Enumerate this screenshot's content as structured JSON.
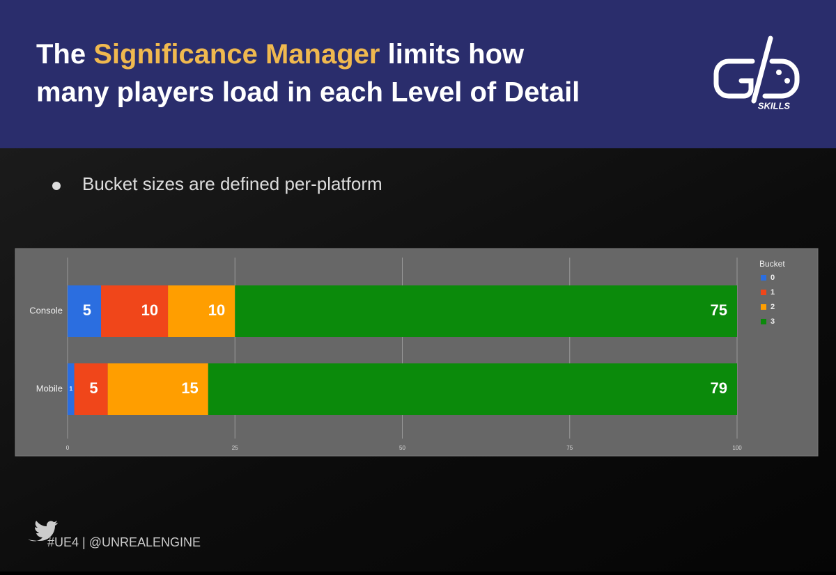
{
  "header": {
    "title_start": "The ",
    "title_highlight": "Significance Manager",
    "title_line1_end": " limits how",
    "title_line2": "many players load in each Level of Detail",
    "logo_text": "SKILLS"
  },
  "bullet": "Bucket sizes are defined per-platform",
  "footer": "#UE4 | @UNREALENGINE",
  "chart_data": {
    "type": "stacked-bar-horizontal",
    "legend_title": "Bucket",
    "legend_position": "right",
    "categories": [
      "Console",
      "Mobile"
    ],
    "series": [
      {
        "name": "0",
        "color": "#2b6ee0",
        "values": [
          5,
          1
        ]
      },
      {
        "name": "1",
        "color": "#f0461a",
        "values": [
          10,
          5
        ]
      },
      {
        "name": "2",
        "color": "#ff9e00",
        "values": [
          10,
          15
        ]
      },
      {
        "name": "3",
        "color": "#0b8a0b",
        "values": [
          75,
          79
        ]
      }
    ],
    "xlim": [
      0,
      100
    ],
    "xticks": [
      0,
      25,
      50,
      75,
      100
    ],
    "grid": true
  }
}
